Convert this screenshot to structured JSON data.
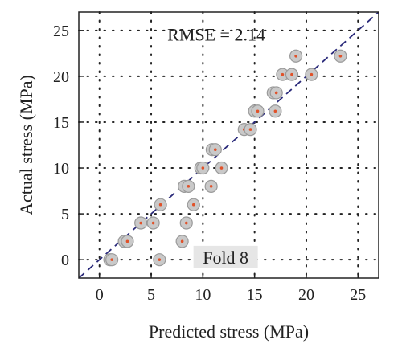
{
  "chart_data": {
    "type": "scatter",
    "xlabel": "Predicted stress (MPa)",
    "ylabel": "Actual stress (MPa)",
    "xlim": [
      -2,
      27
    ],
    "ylim": [
      -2,
      27
    ],
    "x_ticks": [
      0,
      5,
      10,
      15,
      20,
      25
    ],
    "y_ticks": [
      0,
      5,
      10,
      15,
      20,
      25
    ],
    "grid": "dotted",
    "reference_line": "y = x (dashed)",
    "annotations": {
      "rmse": "RMSE = 2.14",
      "fold": "Fold 8"
    },
    "points": [
      {
        "x": 1.0,
        "y": 0.0
      },
      {
        "x": 1.2,
        "y": 0.0
      },
      {
        "x": 5.8,
        "y": 0.0
      },
      {
        "x": 2.4,
        "y": 2.0
      },
      {
        "x": 2.7,
        "y": 2.0
      },
      {
        "x": 8.0,
        "y": 2.0
      },
      {
        "x": 4.0,
        "y": 4.0
      },
      {
        "x": 5.2,
        "y": 4.0
      },
      {
        "x": 8.4,
        "y": 4.0
      },
      {
        "x": 5.9,
        "y": 6.0
      },
      {
        "x": 9.1,
        "y": 6.0
      },
      {
        "x": 8.2,
        "y": 8.0
      },
      {
        "x": 8.6,
        "y": 8.0
      },
      {
        "x": 10.8,
        "y": 8.0
      },
      {
        "x": 9.8,
        "y": 10.0
      },
      {
        "x": 10.0,
        "y": 10.0
      },
      {
        "x": 11.8,
        "y": 10.0
      },
      {
        "x": 10.9,
        "y": 12.0
      },
      {
        "x": 11.2,
        "y": 12.0
      },
      {
        "x": 14.0,
        "y": 14.2
      },
      {
        "x": 14.6,
        "y": 14.2
      },
      {
        "x": 15.0,
        "y": 16.2
      },
      {
        "x": 15.3,
        "y": 16.2
      },
      {
        "x": 17.0,
        "y": 16.2
      },
      {
        "x": 16.8,
        "y": 18.2
      },
      {
        "x": 17.1,
        "y": 18.2
      },
      {
        "x": 17.7,
        "y": 20.2
      },
      {
        "x": 18.6,
        "y": 20.2
      },
      {
        "x": 20.5,
        "y": 20.2
      },
      {
        "x": 19.0,
        "y": 22.2
      },
      {
        "x": 23.3,
        "y": 22.2
      }
    ]
  }
}
